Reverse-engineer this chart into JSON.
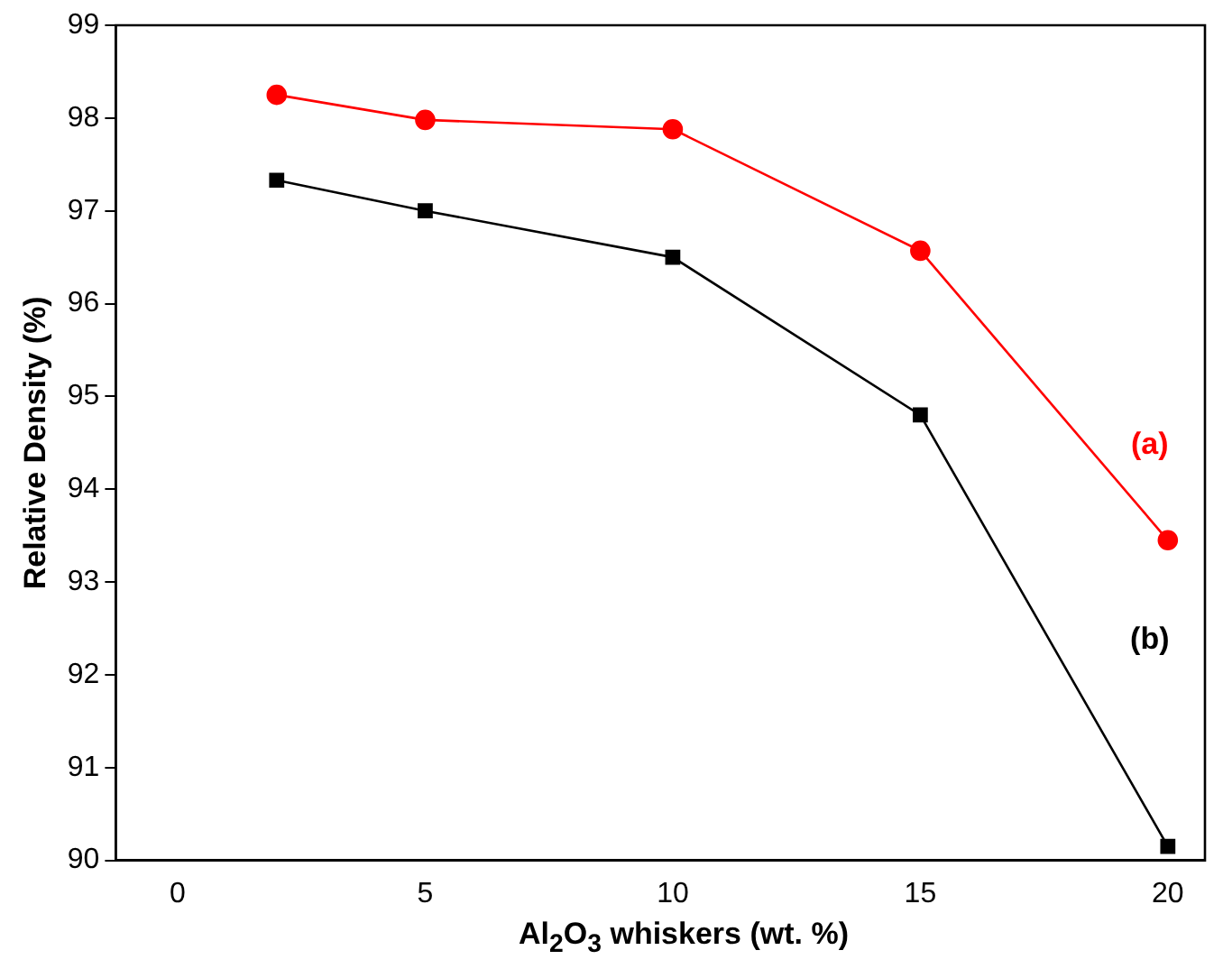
{
  "chart_data": {
    "type": "line",
    "xlabel": "Al$_{2}$O$_{3}$ whiskers (wt. %)",
    "ylabel": "Relative Density (%)",
    "x": [
      2,
      5,
      10,
      15,
      20
    ],
    "series": [
      {
        "name": "(a)",
        "color": "#ff0000",
        "values": [
          98.25,
          97.98,
          97.88,
          96.57,
          93.45
        ],
        "marker": "circle"
      },
      {
        "name": "(b)",
        "color": "#000000",
        "values": [
          97.33,
          97.0,
          96.5,
          94.8,
          90.15
        ],
        "marker": "square"
      }
    ],
    "xlim": [
      -1.25,
      20.75
    ],
    "xticks": [
      0,
      5,
      10,
      15,
      20
    ],
    "ylim": [
      90,
      99
    ],
    "yticks": [
      90,
      91,
      92,
      93,
      94,
      95,
      96,
      97,
      98,
      99
    ],
    "grid": false,
    "legend": false,
    "line_style": "solid"
  }
}
